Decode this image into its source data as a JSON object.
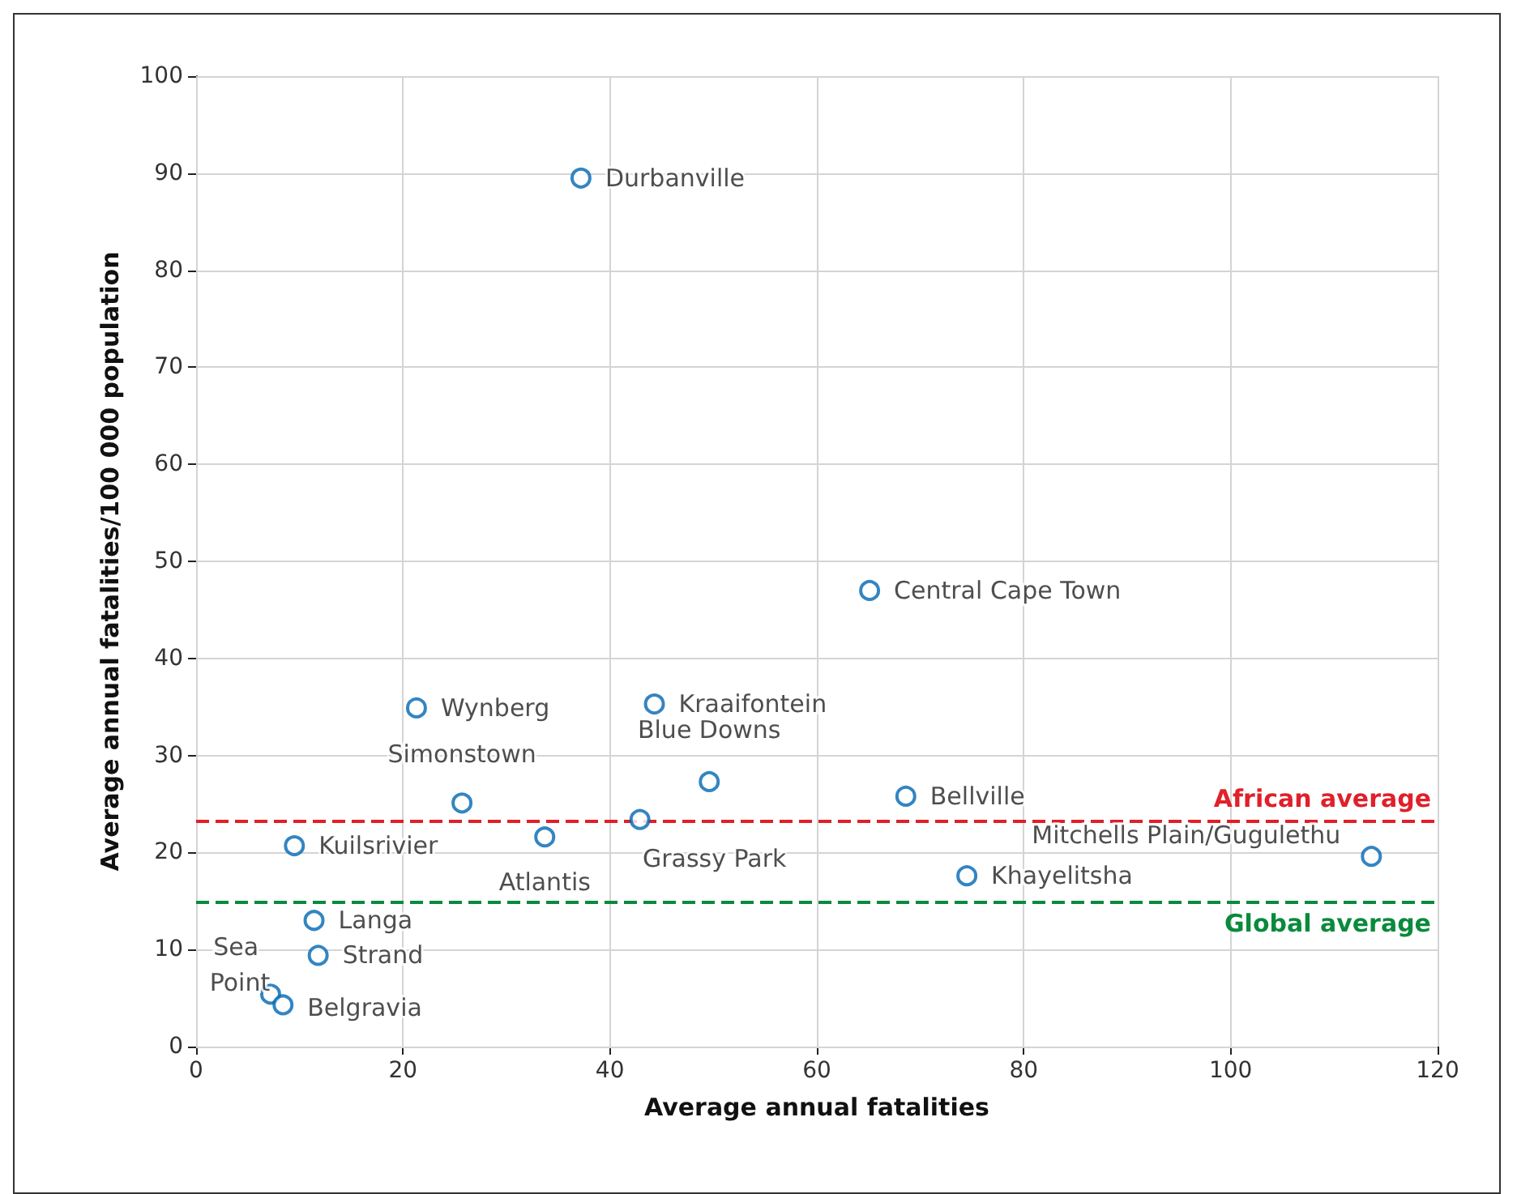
{
  "chart_data": {
    "type": "scatter",
    "xlabel": "Average annual fatalities",
    "ylabel": "Average annual fatalities/100 000 population",
    "series": [
      {
        "color": "#0066b3",
        "x": [
          37.2,
          65.1,
          21.3,
          44.3,
          25.7,
          49.6,
          68.6,
          42.9,
          33.7,
          9.5,
          113.6,
          74.5,
          11.4,
          11.8,
          7.2,
          8.4
        ],
        "values": [
          89.5,
          47.0,
          34.9,
          35.3,
          25.1,
          27.3,
          25.8,
          23.4,
          21.6,
          20.7,
          19.6,
          17.6,
          13.0,
          9.4,
          5.4,
          4.3
        ]
      }
    ],
    "annotations": [
      {
        "text": "Durbanville",
        "x": 37.2,
        "y": 89.5
      },
      {
        "text": "Central Cape Town",
        "x": 65.1,
        "y": 47.0
      },
      {
        "text": "Wynberg",
        "x": 21.3,
        "y": 34.9
      },
      {
        "text": "Kraaifontein",
        "x": 44.3,
        "y": 35.3
      },
      {
        "text": "Simonstown",
        "x": 25.7,
        "y": 25.1
      },
      {
        "text": "Blue Downs",
        "x": 49.6,
        "y": 27.3
      },
      {
        "text": "Bellville",
        "x": 68.6,
        "y": 25.8
      },
      {
        "text": "Grassy Park",
        "x": 42.9,
        "y": 23.4
      },
      {
        "text": "Atlantis",
        "x": 33.7,
        "y": 21.6
      },
      {
        "text": "Kuilsrivier",
        "x": 9.5,
        "y": 20.7
      },
      {
        "text": "Mitchells Plain/Gugulethu",
        "x": 113.6,
        "y": 19.6
      },
      {
        "text": "Khayelitsha",
        "x": 74.5,
        "y": 17.6
      },
      {
        "text": "Langa",
        "x": 11.4,
        "y": 13.0
      },
      {
        "text": "Strand",
        "x": 11.8,
        "y": 9.4
      },
      {
        "text": "Sea Point",
        "x": 7.2,
        "y": 5.4
      },
      {
        "text": "Belgravia",
        "x": 8.4,
        "y": 4.3
      }
    ],
    "ref_lines": [
      {
        "axis": "y",
        "value": 23.3,
        "label": "African average",
        "color": "#e0202a",
        "line_style": "dashed"
      },
      {
        "axis": "y",
        "value": 14.9,
        "label": "Global average",
        "color": "#0a8a3c",
        "line_style": "dashed"
      }
    ],
    "xlim": [
      0,
      120
    ],
    "xticks": [
      0,
      20,
      40,
      60,
      80,
      100,
      120
    ],
    "ylim": [
      0,
      100
    ],
    "yticks": [
      0,
      10,
      20,
      30,
      40,
      50,
      60,
      70,
      80,
      90,
      100
    ],
    "grid": true,
    "marker": "circle"
  }
}
